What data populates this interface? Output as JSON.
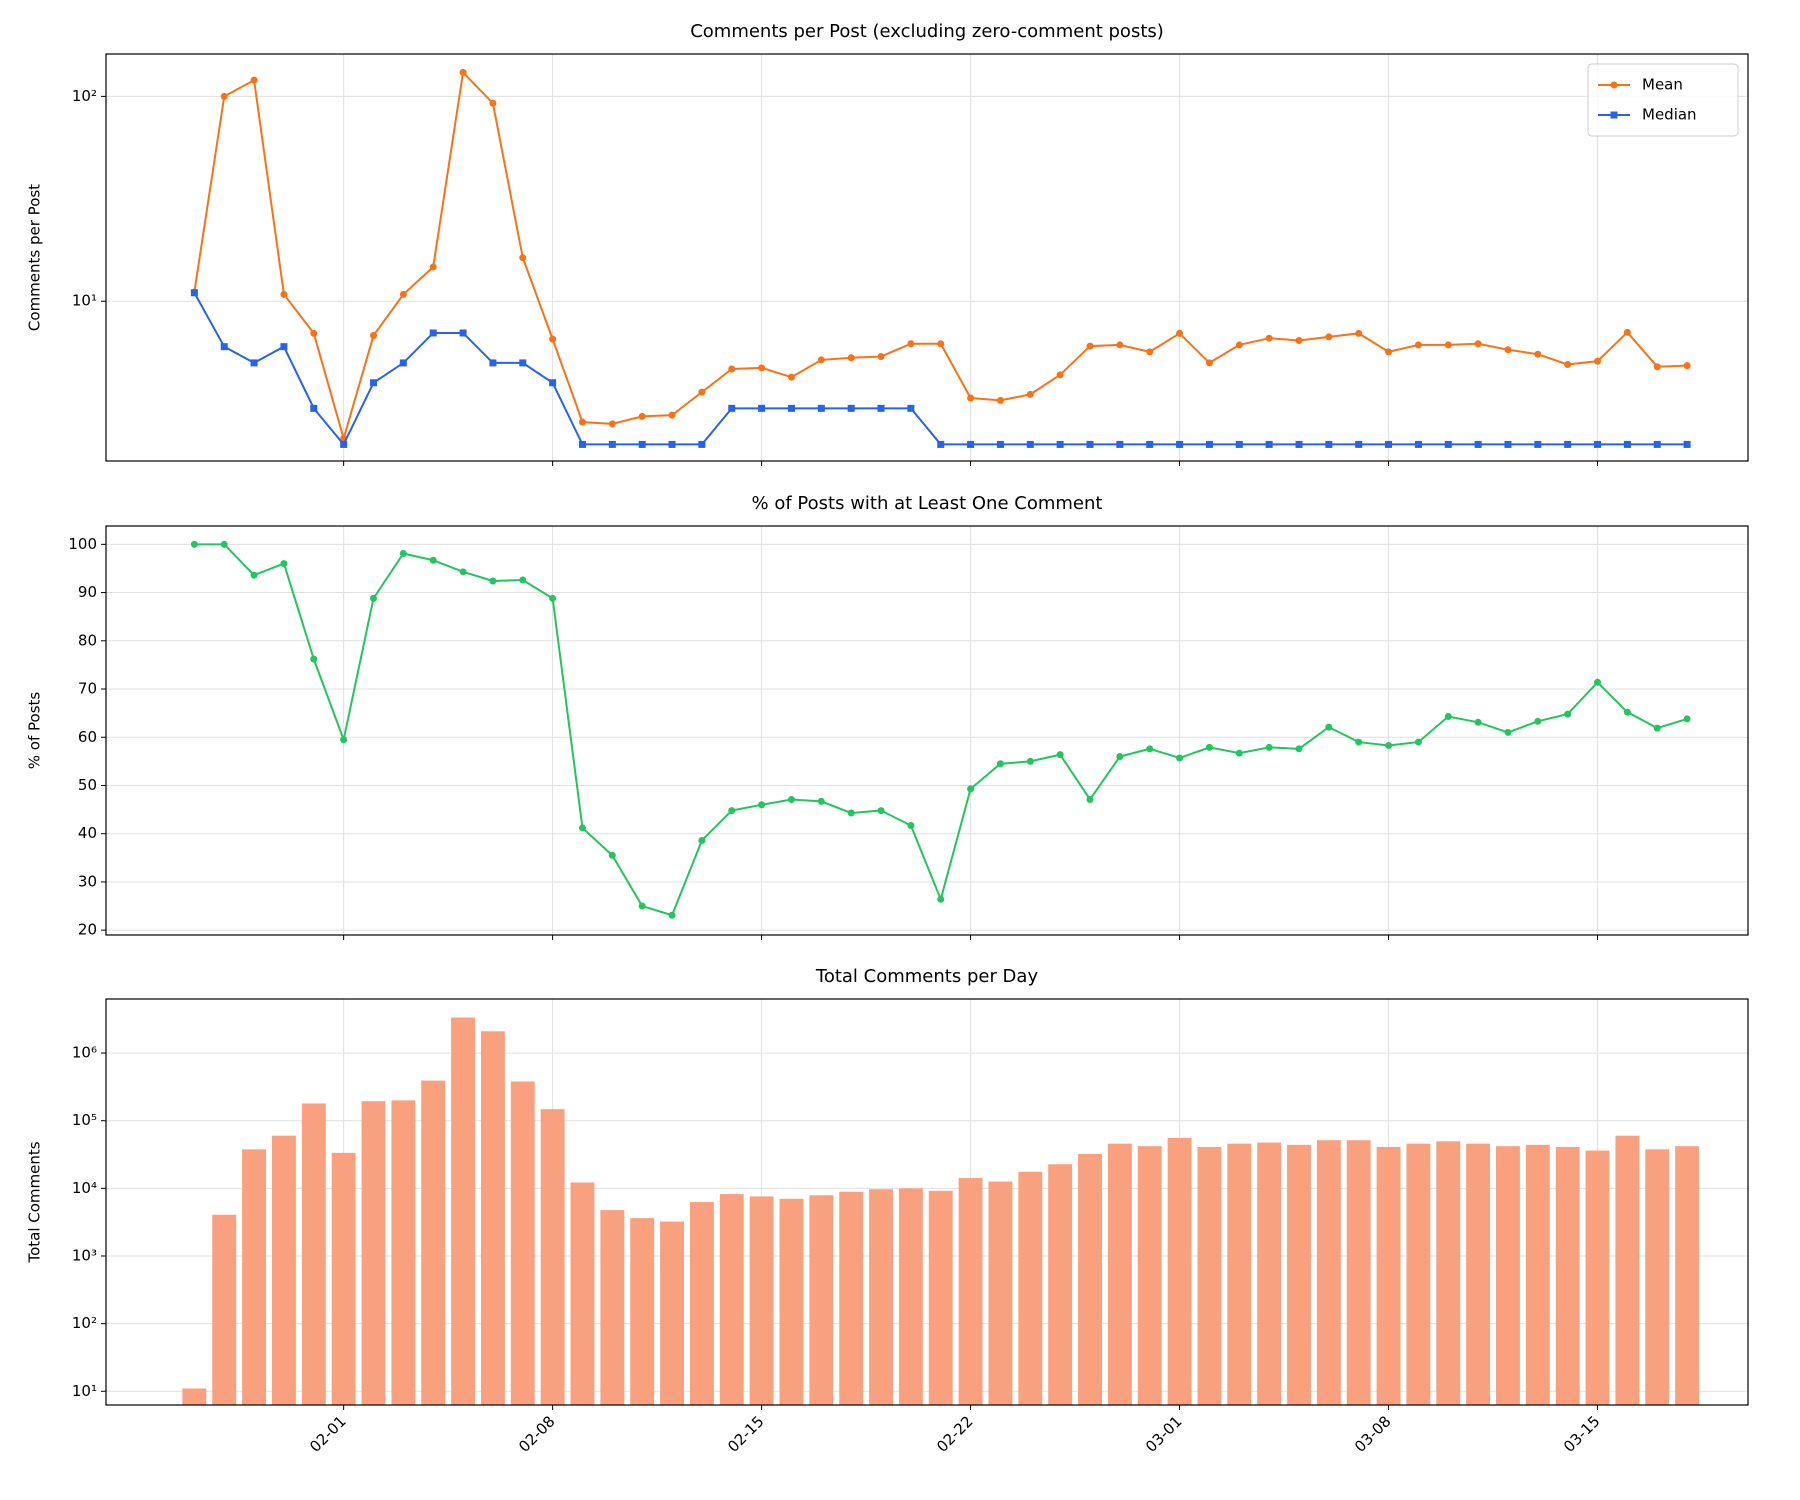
{
  "chart_data": [
    {
      "type": "line",
      "title": "Comments per Post (excluding zero-comment posts)",
      "ylabel": "Comments per Post",
      "yscale": "log",
      "grid": true,
      "legend": "upper right",
      "x": [
        "01-27",
        "01-28",
        "01-29",
        "01-30",
        "01-31",
        "02-01",
        "02-02",
        "02-03",
        "02-04",
        "02-05",
        "02-06",
        "02-07",
        "02-08",
        "02-09",
        "02-10",
        "02-11",
        "02-12",
        "02-13",
        "02-14",
        "02-15",
        "02-16",
        "02-17",
        "02-18",
        "02-19",
        "02-20",
        "02-21",
        "02-22",
        "02-23",
        "02-24",
        "02-25",
        "02-26",
        "02-27",
        "02-28",
        "03-01",
        "03-02",
        "03-03",
        "03-04",
        "03-05",
        "03-06",
        "03-07",
        "03-08",
        "03-09",
        "03-10",
        "03-11",
        "03-12",
        "03-13",
        "03-14",
        "03-15",
        "03-16",
        "03-17",
        "03-18"
      ],
      "ylim": [
        1.66,
        161
      ],
      "yticks": [
        {
          "value": 10,
          "label": "10¹"
        },
        {
          "value": 100,
          "label": "10²"
        }
      ],
      "series": [
        {
          "name": "Mean",
          "color": "#f97316",
          "marker": "o",
          "values": [
            11.1,
            100,
            120,
            10.8,
            6.97,
            2.14,
            6.8,
            10.8,
            14.7,
            131,
            92.5,
            16.3,
            6.53,
            2.57,
            2.52,
            2.74,
            2.78,
            3.6,
            4.67,
            4.73,
            4.26,
            5.17,
            5.3,
            5.37,
            6.2,
            6.2,
            3.37,
            3.28,
            3.51,
            4.37,
            6.04,
            6.12,
            5.66,
            6.97,
            5.0,
            6.12,
            6.6,
            6.43,
            6.7,
            6.97,
            5.66,
            6.12,
            6.12,
            6.2,
            5.8,
            5.51,
            4.91,
            5.1,
            7.05,
            4.79,
            4.85
          ]
        },
        {
          "name": "Median",
          "color": "#2563eb",
          "marker": "s",
          "values": [
            11,
            6,
            5,
            6,
            3,
            2,
            4,
            5,
            7,
            7,
            5,
            5,
            4,
            2,
            2,
            2,
            2,
            2,
            3,
            3,
            3,
            3,
            3,
            3,
            3,
            2,
            2,
            2,
            2,
            2,
            2,
            2,
            2,
            2,
            2,
            2,
            2,
            2,
            2,
            2,
            2,
            2,
            2,
            2,
            2,
            2,
            2,
            2,
            2,
            2,
            2
          ]
        }
      ]
    },
    {
      "type": "line",
      "title": "% of Posts with at Least One Comment",
      "ylabel": "% of Posts",
      "yscale": "linear",
      "grid": true,
      "x": [
        "01-27",
        "01-28",
        "01-29",
        "01-30",
        "01-31",
        "02-01",
        "02-02",
        "02-03",
        "02-04",
        "02-05",
        "02-06",
        "02-07",
        "02-08",
        "02-09",
        "02-10",
        "02-11",
        "02-12",
        "02-13",
        "02-14",
        "02-15",
        "02-16",
        "02-17",
        "02-18",
        "02-19",
        "02-20",
        "02-21",
        "02-22",
        "02-23",
        "02-24",
        "02-25",
        "02-26",
        "02-27",
        "02-28",
        "03-01",
        "03-02",
        "03-03",
        "03-04",
        "03-05",
        "03-06",
        "03-07",
        "03-08",
        "03-09",
        "03-10",
        "03-11",
        "03-12",
        "03-13",
        "03-14",
        "03-15",
        "03-16",
        "03-17",
        "03-18"
      ],
      "ylim": [
        19.0,
        103.8
      ],
      "yticks": [
        20,
        30,
        40,
        50,
        60,
        70,
        80,
        90,
        100
      ],
      "series": [
        {
          "color": "#22c55e",
          "marker": "o",
          "values": [
            100,
            100,
            93.6,
            96.0,
            76.2,
            59.5,
            88.8,
            98.1,
            96.7,
            94.3,
            92.4,
            92.6,
            88.8,
            41.2,
            35.5,
            25.0,
            23.1,
            38.6,
            44.8,
            46.0,
            47.1,
            46.7,
            44.3,
            44.8,
            41.7,
            26.4,
            49.3,
            54.5,
            55.0,
            56.4,
            47.1,
            56.0,
            57.6,
            55.7,
            57.9,
            56.7,
            57.9,
            57.6,
            62.1,
            59.0,
            58.3,
            59.0,
            64.3,
            63.1,
            61.0,
            63.3,
            64.8,
            71.4,
            65.2,
            61.9,
            63.8
          ]
        }
      ]
    },
    {
      "type": "bar",
      "title": "Total Comments per Day",
      "ylabel": "Total Comments",
      "yscale": "log",
      "grid": true,
      "color": "#f9a07f",
      "x": [
        "01-27",
        "01-28",
        "01-29",
        "01-30",
        "01-31",
        "02-01",
        "02-02",
        "02-03",
        "02-04",
        "02-05",
        "02-06",
        "02-07",
        "02-08",
        "02-09",
        "02-10",
        "02-11",
        "02-12",
        "02-13",
        "02-14",
        "02-15",
        "02-16",
        "02-17",
        "02-18",
        "02-19",
        "02-20",
        "02-21",
        "02-22",
        "02-23",
        "02-24",
        "02-25",
        "02-26",
        "02-27",
        "02-28",
        "03-01",
        "03-02",
        "03-03",
        "03-04",
        "03-05",
        "03-06",
        "03-07",
        "03-08",
        "03-09",
        "03-10",
        "03-11",
        "03-12",
        "03-13",
        "03-14",
        "03-15",
        "03-16",
        "03-17",
        "03-18"
      ],
      "xticks": [
        "02-01",
        "02-08",
        "02-15",
        "02-22",
        "03-01",
        "03-08",
        "03-15"
      ],
      "ylim": [
        6.27,
        6300000
      ],
      "yticks": [
        {
          "value": 10,
          "label": "10¹"
        },
        {
          "value": 100,
          "label": "10²"
        },
        {
          "value": 1000,
          "label": "10³"
        },
        {
          "value": 10000,
          "label": "10⁴"
        },
        {
          "value": 100000,
          "label": "10⁵"
        },
        {
          "value": 1000000,
          "label": "10⁶"
        }
      ],
      "values": [
        11,
        4070,
        37700,
        60000,
        180000,
        33500,
        194000,
        200000,
        392000,
        3350000,
        2100000,
        380000,
        148000,
        12200,
        4770,
        3630,
        3230,
        6270,
        8230,
        7600,
        7000,
        7900,
        8900,
        9700,
        10000,
        9200,
        14200,
        12600,
        17600,
        22700,
        32200,
        45800,
        42000,
        55700,
        40900,
        45800,
        47500,
        44000,
        51500,
        51500,
        40900,
        45800,
        49600,
        45800,
        42000,
        44000,
        40900,
        36200,
        60000,
        37700,
        42000
      ]
    }
  ]
}
